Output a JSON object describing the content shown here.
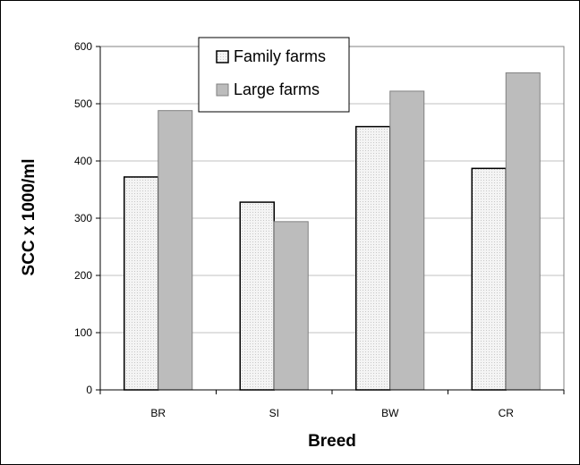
{
  "chart_data": {
    "type": "bar",
    "categories": [
      "BR",
      "SI",
      "BW",
      "CR"
    ],
    "series": [
      {
        "name": "Family farms",
        "values": [
          372,
          328,
          460,
          387
        ],
        "fill": "#eeeeee"
      },
      {
        "name": "Large farms",
        "values": [
          488,
          294,
          522,
          554
        ],
        "fill": "#bcbcbc"
      }
    ],
    "xlabel": "Breed",
    "ylabel": "SCC x 1000/ml",
    "ylim": [
      0,
      600
    ],
    "yticks": [
      0,
      100,
      200,
      300,
      400,
      500,
      600
    ],
    "grid": true,
    "legend_position": "top-center",
    "colors": {
      "plot_background": "#ffffff",
      "gridline": "#c0c0c0",
      "bar_outline": "#000000",
      "plot_border": "#808080"
    }
  }
}
